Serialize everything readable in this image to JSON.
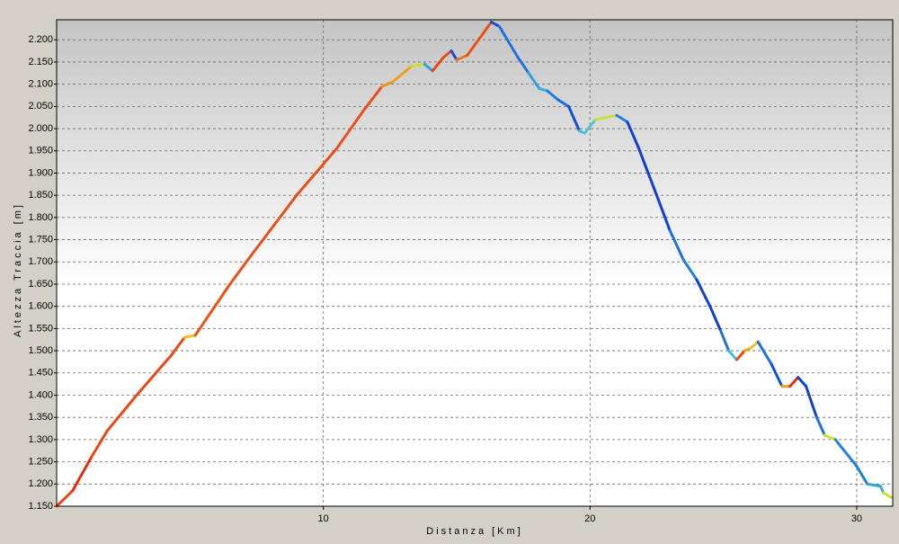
{
  "chart_data": {
    "type": "line",
    "x_label": "Distanza [Km]",
    "y_label": "Altezza Traccia [m]",
    "x": [
      0,
      0.6,
      1.3,
      1.9,
      3,
      4.3,
      4.8,
      5.2,
      6.5,
      7.3,
      9,
      10.5,
      11.5,
      12.2,
      12.6,
      13.3,
      13.8,
      14.1,
      14.5,
      14.8,
      15.0,
      15.4,
      16.0,
      16.3,
      16.6,
      17.3,
      17.7,
      18.1,
      18.4,
      18.8,
      19.2,
      19.6,
      19.8,
      20.2,
      21,
      21.4,
      21.8,
      22.5,
      23,
      23.5,
      24,
      24.5,
      24.9,
      25.2,
      25.5,
      25.8,
      26.0,
      26.3,
      26.8,
      27.2,
      27.5,
      27.8,
      28.1,
      28.5,
      28.8,
      29.2,
      29.6,
      30,
      30.4,
      30.9,
      31.0,
      31.3
    ],
    "series": [
      {
        "values": [
          1150,
          1185,
          1260,
          1320,
          1400,
          1490,
          1530,
          1535,
          1650,
          1715,
          1850,
          1955,
          2040,
          2095,
          2105,
          2140,
          2145,
          2130,
          2160,
          2175,
          2155,
          2165,
          2215,
          2240,
          2230,
          2160,
          2125,
          2090,
          2085,
          2065,
          2050,
          1995,
          1990,
          2020,
          2030,
          2015,
          1960,
          1850,
          1770,
          1705,
          1660,
          1600,
          1545,
          1500,
          1480,
          1500,
          1505,
          1520,
          1470,
          1420,
          1420,
          1440,
          1420,
          1350,
          1310,
          1300,
          1270,
          1240,
          1200,
          1195,
          1180,
          1170
        ],
        "colors": [
          "#f0a020",
          "#e84818",
          "#e03010",
          "#e84818",
          "#e84818",
          "#e84818",
          "#e84818",
          "#f0c020",
          "#e85018",
          "#e85018",
          "#e85018",
          "#e85018",
          "#e85018",
          "#e85018",
          "#f09020",
          "#f0a020",
          "#c8e030",
          "#30a0e0",
          "#e84818",
          "#e84818",
          "#1050d8",
          "#f07020",
          "#e85018",
          "#e85018",
          "#1050d8",
          "#2070e0",
          "#2070e0",
          "#30a0e0",
          "#30b0e0",
          "#2080e0",
          "#2070e0",
          "#1050d8",
          "#40c0e0",
          "#50c8d0",
          "#c8e030",
          "#2080e0",
          "#1040d0",
          "#1040d0",
          "#1040d0",
          "#2070e0",
          "#2080e0",
          "#1040d0",
          "#1040d0",
          "#2070e0",
          "#40c0e0",
          "#e84818",
          "#f0a020",
          "#f0c020",
          "#2070e0",
          "#1050d8",
          "#f0a020",
          "#e03010",
          "#1040d0",
          "#1040d0",
          "#2070e0",
          "#c8e030",
          "#2080e0",
          "#2080e0",
          "#2080e0",
          "#30a0e0",
          "#30b0e0",
          "#c8e030"
        ]
      }
    ],
    "xlim": [
      0,
      31.35
    ],
    "ylim": [
      1150,
      2245
    ],
    "xticks": [
      10,
      20,
      30
    ],
    "yticks": [
      {
        "value": 1150,
        "label": "1.150"
      },
      {
        "value": 1200,
        "label": "1.200"
      },
      {
        "value": 1250,
        "label": "1.250"
      },
      {
        "value": 1300,
        "label": "1.300"
      },
      {
        "value": 1350,
        "label": "1.350"
      },
      {
        "value": 1400,
        "label": "1.400"
      },
      {
        "value": 1450,
        "label": "1.450"
      },
      {
        "value": 1500,
        "label": "1.500"
      },
      {
        "value": 1550,
        "label": "1.550"
      },
      {
        "value": 1600,
        "label": "1.600"
      },
      {
        "value": 1650,
        "label": "1.650"
      },
      {
        "value": 1700,
        "label": "1.700"
      },
      {
        "value": 1750,
        "label": "1.750"
      },
      {
        "value": 1800,
        "label": "1.800"
      },
      {
        "value": 1850,
        "label": "1.850"
      },
      {
        "value": 1900,
        "label": "1.900"
      },
      {
        "value": 1950,
        "label": "1.950"
      },
      {
        "value": 2000,
        "label": "2.000"
      },
      {
        "value": 2050,
        "label": "2.050"
      },
      {
        "value": 2100,
        "label": "2.100"
      },
      {
        "value": 2150,
        "label": "2.150"
      },
      {
        "value": 2200,
        "label": "2.200"
      }
    ],
    "grid": true
  }
}
